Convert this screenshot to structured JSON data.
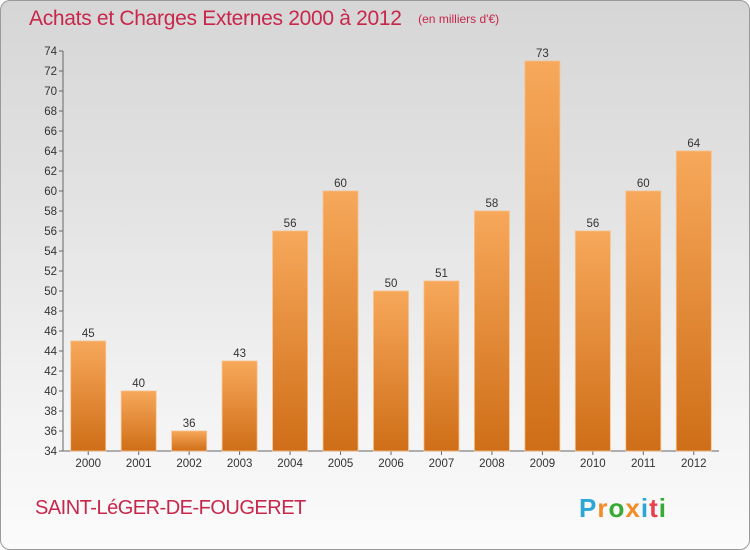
{
  "header": {
    "title": "Achats et Charges Externes 2000 à 2012",
    "subtitle": "(en milliers d'€)"
  },
  "footer": {
    "place": "SAINT-LéGER-DE-FOUGERET",
    "logo_text": "Proxiti",
    "logo_colors": [
      "#2aa7d6",
      "#f28c28",
      "#38a935",
      "#f28c28",
      "#2aa7d6",
      "#e8404f",
      "#38a935"
    ]
  },
  "colors": {
    "bar_light": "#f7a85a",
    "bar_dark": "#cf6e18",
    "axis": "#666666",
    "grid": "#999999",
    "text": "#333333",
    "title": "#c8274c"
  },
  "chart_data": {
    "type": "bar",
    "title": "Achats et Charges Externes 2000 à 2012",
    "subtitle": "(en milliers d'€)",
    "xlabel": "",
    "ylabel": "",
    "categories": [
      "2000",
      "2001",
      "2002",
      "2003",
      "2004",
      "2005",
      "2006",
      "2007",
      "2008",
      "2009",
      "2010",
      "2011",
      "2012"
    ],
    "values": [
      45,
      40,
      36,
      43,
      56,
      60,
      50,
      51,
      58,
      73,
      56,
      60,
      64
    ],
    "ylim": [
      34,
      74
    ],
    "ytick_step": 2,
    "grid": false,
    "legend": "none"
  }
}
